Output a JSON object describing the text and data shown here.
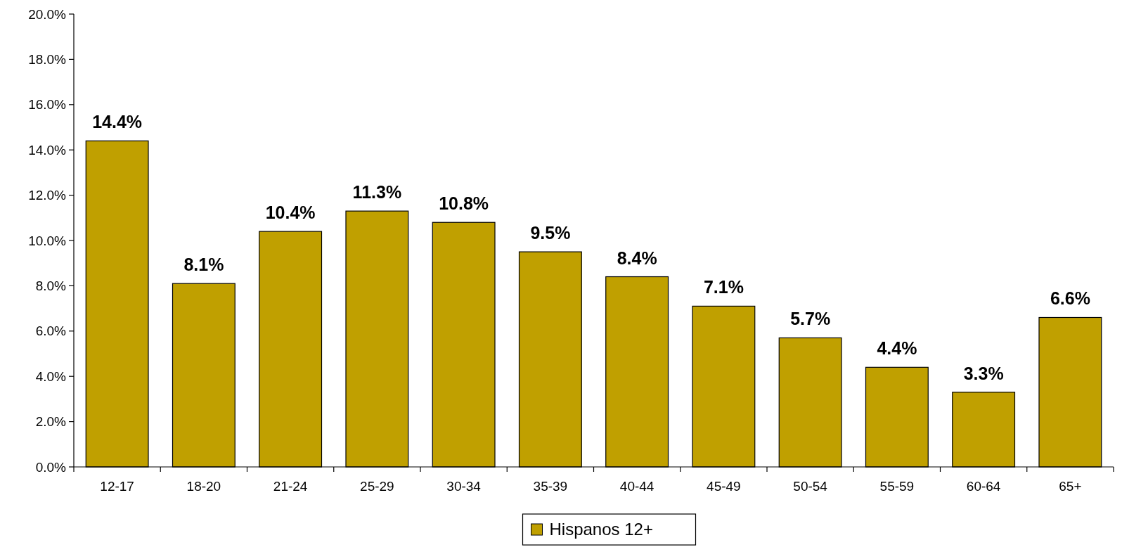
{
  "chart_data": {
    "type": "bar",
    "categories": [
      "12-17",
      "18-20",
      "21-24",
      "25-29",
      "30-34",
      "35-39",
      "40-44",
      "45-49",
      "50-54",
      "55-59",
      "60-64",
      "65+"
    ],
    "series": [
      {
        "name": "Hispanos 12+",
        "color": "#c0a000",
        "values": [
          14.4,
          8.1,
          10.4,
          11.3,
          10.8,
          9.5,
          8.4,
          7.1,
          5.7,
          4.4,
          3.3,
          6.6
        ],
        "value_labels": [
          "14.4%",
          "8.1%",
          "10.4%",
          "11.3%",
          "10.8%",
          "9.5%",
          "8.4%",
          "7.1%",
          "5.7%",
          "4.4%",
          "3.3%",
          "6.6%"
        ]
      }
    ],
    "ylim": [
      0,
      20
    ],
    "yticks": [
      {
        "value": 0,
        "label": "0.0%"
      },
      {
        "value": 2,
        "label": "2.0%"
      },
      {
        "value": 4,
        "label": "4.0%"
      },
      {
        "value": 6,
        "label": "6.0%"
      },
      {
        "value": 8,
        "label": "8.0%"
      },
      {
        "value": 10,
        "label": "10.0%"
      },
      {
        "value": 12,
        "label": "12.0%"
      },
      {
        "value": 14,
        "label": "14.0%"
      },
      {
        "value": 16,
        "label": "16.0%"
      },
      {
        "value": 18,
        "label": "18.0%"
      },
      {
        "value": 20,
        "label": "20.0%"
      }
    ],
    "grid": false,
    "legend": "bottom"
  }
}
